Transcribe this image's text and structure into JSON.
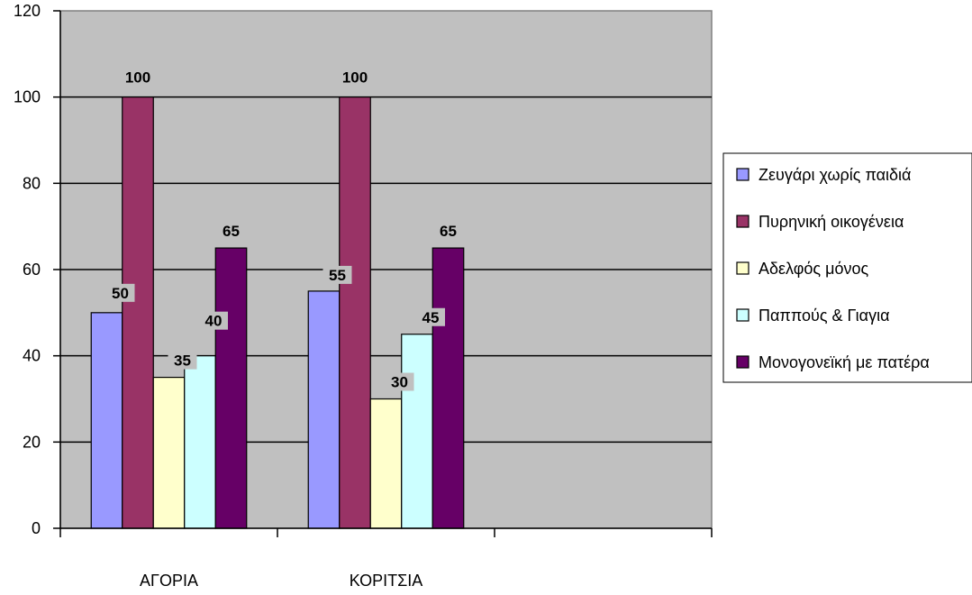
{
  "chart_data": {
    "type": "bar",
    "categories": [
      "ΑΓΟΡΙΑ",
      "ΚΟΡΙΤΣΙΑ",
      ""
    ],
    "series": [
      {
        "name": "Ζευγάρι χωρίς παιδιά",
        "values": [
          50,
          55,
          null
        ],
        "color": "#9999FF"
      },
      {
        "name": "Πυρηνική οικογένεια",
        "values": [
          100,
          100,
          null
        ],
        "color": "#993366"
      },
      {
        "name": "Αδελφός μόνος",
        "values": [
          35,
          30,
          null
        ],
        "color": "#FFFFCC"
      },
      {
        "name": "Παππούς & Γιαγια",
        "values": [
          40,
          45,
          null
        ],
        "color": "#CCFFFF"
      },
      {
        "name": "Μονογονεϊκή με πατέρα",
        "values": [
          65,
          65,
          null
        ],
        "color": "#660066"
      }
    ],
    "ylim": [
      0,
      120
    ],
    "yticks": [
      0,
      20,
      40,
      60,
      80,
      100,
      120
    ],
    "grid": true,
    "plot_background": "#C0C0C0",
    "legend_position": "right"
  }
}
